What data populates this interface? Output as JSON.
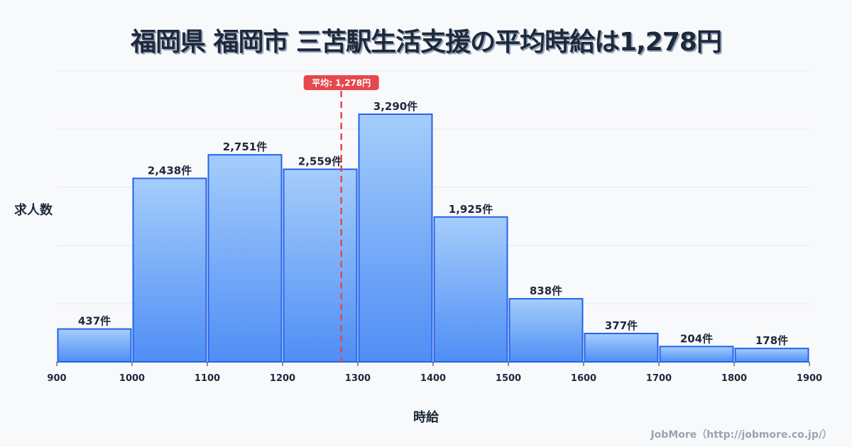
{
  "title": "福岡県 福岡市 三苫駅生活支援の平均時給は1,278円",
  "y_axis_label": "求人数",
  "x_axis_label": "時給",
  "credit": "JobMore（http://jobmore.co.jp/）",
  "average_badge": "平均: 1,278円",
  "colors": {
    "bar_fill_top": "#a5cdfb",
    "bar_fill_bottom": "#4f8ef5",
    "bar_stroke": "#2563eb",
    "average_line": "#e5484d",
    "grid": "#e2e8f0",
    "background": "#f8f9fb"
  },
  "chart_data": {
    "type": "bar",
    "title": "福岡県 福岡市 三苫駅生活支援の平均時給は1,278円",
    "xlabel": "時給",
    "ylabel": "求人数",
    "bins": [
      [
        900,
        1000
      ],
      [
        1000,
        1100
      ],
      [
        1100,
        1200
      ],
      [
        1200,
        1300
      ],
      [
        1300,
        1400
      ],
      [
        1400,
        1500
      ],
      [
        1500,
        1600
      ],
      [
        1600,
        1700
      ],
      [
        1700,
        1800
      ],
      [
        1800,
        1900
      ]
    ],
    "categories": [
      "900-1000",
      "1000-1100",
      "1100-1200",
      "1200-1300",
      "1300-1400",
      "1400-1500",
      "1500-1600",
      "1600-1700",
      "1700-1800",
      "1800-1900"
    ],
    "values": [
      437,
      2438,
      2751,
      2559,
      3290,
      1925,
      838,
      377,
      204,
      178
    ],
    "value_labels": [
      "437件",
      "2,438件",
      "2,751件",
      "2,559件",
      "3,290件",
      "1,925件",
      "838件",
      "377件",
      "204件",
      "178件"
    ],
    "x_ticks": [
      "900",
      "1000",
      "1100",
      "1200",
      "1300",
      "1400",
      "1500",
      "1600",
      "1700",
      "1800",
      "1900"
    ],
    "xlim": [
      900,
      1900
    ],
    "ylim": [
      0,
      3865
    ],
    "grid": true,
    "annotations": [
      {
        "type": "vline",
        "x": 1278,
        "label": "平均: 1,278円"
      }
    ]
  }
}
